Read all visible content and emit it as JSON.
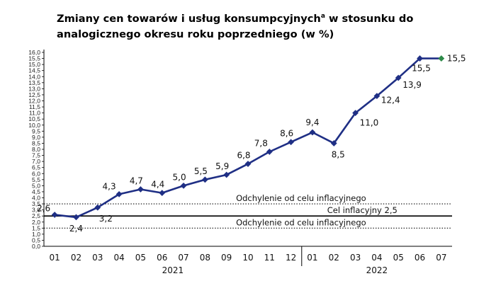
{
  "title": {
    "main": "Zmiany cen towarów i usług konsumpcyjnych",
    "sup": "a",
    "rest": " w stosunku do analogicznego okresu roku poprzedniego (w %)"
  },
  "chart_data": {
    "type": "line",
    "title": "Zmiany cen towarów i usług konsumpcyjnych w stosunku do analogicznego okresu roku poprzedniego (w %)",
    "categories": [
      "01",
      "02",
      "03",
      "04",
      "05",
      "06",
      "07",
      "08",
      "09",
      "10",
      "11",
      "12",
      "01",
      "02",
      "03",
      "04",
      "05",
      "06",
      "07"
    ],
    "year_groups": [
      {
        "label": "2021",
        "from": 0,
        "to": 11
      },
      {
        "label": "2022",
        "from": 12,
        "to": 18
      }
    ],
    "series": [
      {
        "values": [
          2.6,
          2.4,
          3.2,
          4.3,
          4.7,
          4.4,
          5.0,
          5.5,
          5.9,
          6.8,
          7.8,
          8.6,
          9.4,
          8.5,
          11.0,
          12.4,
          13.9,
          15.5,
          15.5
        ],
        "labels": [
          "2,6",
          "2,4",
          "3,2",
          "4,3",
          "4,7",
          "4,4",
          "5,0",
          "5,5",
          "5,9",
          "6,8",
          "7,8",
          "8,6",
          "9,4",
          "8,5",
          "11,0",
          "12,4",
          "13,9",
          "15,5",
          "15,5"
        ],
        "color": "#1f2f85",
        "last_point_color": "#2e8b4a"
      }
    ],
    "ylim": [
      0,
      16
    ],
    "ytick_step": 0.5,
    "reference_lines": [
      {
        "value": 3.5,
        "label": "Odchylenie od celu inflacyjnego",
        "style": "dotted"
      },
      {
        "value": 2.5,
        "label": "Cel inflacyjny 2,5",
        "style": "solid"
      },
      {
        "value": 1.5,
        "label": "Odchylenie od celu inflacyjnego",
        "style": "dotted"
      }
    ],
    "xlabel": "",
    "ylabel": "",
    "grid": false,
    "legend": "none"
  }
}
